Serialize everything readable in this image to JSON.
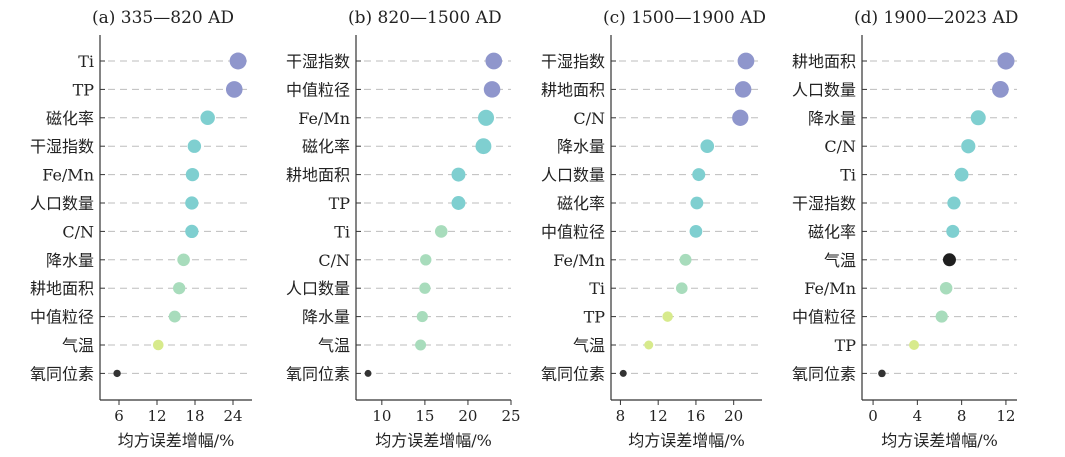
{
  "chart_data": [
    {
      "type": "scatter",
      "title": "(a) 335—820 AD",
      "xlabel": "均方误差增幅/%",
      "xlim": [
        3,
        27
      ],
      "xticks": [
        6,
        12,
        18,
        24
      ],
      "grid": "horizontal dashed",
      "points": [
        {
          "label": "Ti",
          "value": 24.8
        },
        {
          "label": "TP",
          "value": 24.2
        },
        {
          "label": "磁化率",
          "value": 20.0
        },
        {
          "label": "干湿指数",
          "value": 17.9
        },
        {
          "label": "Fe/Mn",
          "value": 17.6
        },
        {
          "label": "人口数量",
          "value": 17.5
        },
        {
          "label": "C/N",
          "value": 17.5
        },
        {
          "label": "降水量",
          "value": 16.2
        },
        {
          "label": "耕地面积",
          "value": 15.5
        },
        {
          "label": "中值粒径",
          "value": 14.8
        },
        {
          "label": "气温",
          "value": 12.2
        },
        {
          "label": "氧同位素",
          "value": 5.7
        }
      ]
    },
    {
      "type": "scatter",
      "title": "(b) 820—1500 AD",
      "xlabel": "均方误差增幅/%",
      "xlim": [
        7,
        25
      ],
      "xticks": [
        10,
        15,
        20,
        25
      ],
      "grid": "horizontal dashed",
      "points": [
        {
          "label": "干湿指数",
          "value": 23.0
        },
        {
          "label": "中值粒径",
          "value": 22.8
        },
        {
          "label": "Fe/Mn",
          "value": 22.1
        },
        {
          "label": "磁化率",
          "value": 21.8
        },
        {
          "label": "耕地面积",
          "value": 18.9
        },
        {
          "label": "TP",
          "value": 18.9
        },
        {
          "label": "Ti",
          "value": 16.9
        },
        {
          "label": "C/N",
          "value": 15.1
        },
        {
          "label": "人口数量",
          "value": 15.0
        },
        {
          "label": "降水量",
          "value": 14.7
        },
        {
          "label": "气温",
          "value": 14.5
        },
        {
          "label": "氧同位素",
          "value": 8.4
        }
      ]
    },
    {
      "type": "scatter",
      "title": "(c) 1500—1900 AD",
      "xlabel": "均方误差增幅/%",
      "xlim": [
        7,
        23
      ],
      "xticks": [
        8,
        12,
        16,
        20
      ],
      "grid": "horizontal dashed",
      "points": [
        {
          "label": "干湿指数",
          "value": 21.3
        },
        {
          "label": "耕地面积",
          "value": 21.0
        },
        {
          "label": "C/N",
          "value": 20.7
        },
        {
          "label": "降水量",
          "value": 17.2
        },
        {
          "label": "人口数量",
          "value": 16.3
        },
        {
          "label": "磁化率",
          "value": 16.1
        },
        {
          "label": "中值粒径",
          "value": 16.0
        },
        {
          "label": "Fe/Mn",
          "value": 14.9
        },
        {
          "label": "Ti",
          "value": 14.5
        },
        {
          "label": "TP",
          "value": 13.0
        },
        {
          "label": "气温",
          "value": 11.0
        },
        {
          "label": "氧同位素",
          "value": 8.3
        }
      ]
    },
    {
      "type": "scatter",
      "title": "(d) 1900—2023 AD",
      "xlabel": "均方误差增幅/%",
      "xlim": [
        -1,
        13
      ],
      "xticks": [
        0,
        4,
        8,
        12
      ],
      "grid": "horizontal dashed",
      "points": [
        {
          "label": "耕地面积",
          "value": 12.0
        },
        {
          "label": "人口数量",
          "value": 11.5
        },
        {
          "label": "降水量",
          "value": 9.5
        },
        {
          "label": "C/N",
          "value": 8.6
        },
        {
          "label": "Ti",
          "value": 8.0
        },
        {
          "label": "干湿指数",
          "value": 7.3
        },
        {
          "label": "磁化率",
          "value": 7.2
        },
        {
          "label": "气温",
          "value": 6.9
        },
        {
          "label": "Fe/Mn",
          "value": 6.6
        },
        {
          "label": "中值粒径",
          "value": 6.2
        },
        {
          "label": "TP",
          "value": 3.7
        },
        {
          "label": "氧同位素",
          "value": 0.8
        }
      ]
    }
  ],
  "colors": {
    "high": "#8f96cc",
    "mid": "#7fcfd0",
    "low_mid": "#a8dcbc",
    "low": "#d7ea8c",
    "lowest": "#333333",
    "special": "#1f1f1f",
    "grid": "#bdbdbd",
    "axis": "#333333"
  }
}
